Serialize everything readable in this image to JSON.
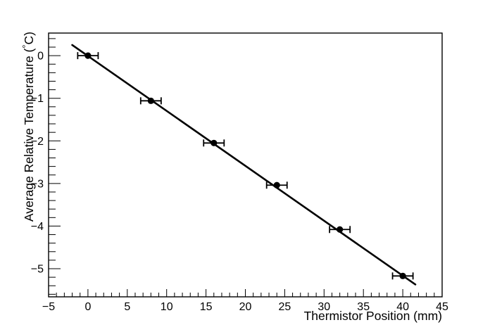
{
  "window": {
    "background": "#ffffff"
  },
  "chart_data": {
    "type": "scatter",
    "title": "",
    "xlabel": "Thermistor Position (mm)",
    "ylabel": "Average Relative Temperature (°C)",
    "xlim": [
      -5,
      45
    ],
    "ylim": [
      -5.66,
      0.53
    ],
    "grid": false,
    "legend": null,
    "x_major_ticks": [
      {
        "v": -5,
        "label": "−5"
      },
      {
        "v": 0,
        "label": "0"
      },
      {
        "v": 5,
        "label": "5"
      },
      {
        "v": 10,
        "label": "10"
      },
      {
        "v": 15,
        "label": "15"
      },
      {
        "v": 20,
        "label": "20"
      },
      {
        "v": 25,
        "label": "25"
      },
      {
        "v": 30,
        "label": "30"
      },
      {
        "v": 35,
        "label": "35"
      },
      {
        "v": 40,
        "label": "40"
      },
      {
        "v": 45,
        "label": "45"
      }
    ],
    "x_minor_tick_step": 1,
    "y_major_ticks": [
      {
        "v": 0,
        "label": "0"
      },
      {
        "v": -1,
        "label": "−1"
      },
      {
        "v": -2,
        "label": "−2"
      },
      {
        "v": -3,
        "label": "−3"
      },
      {
        "v": -4,
        "label": "−4"
      },
      {
        "v": -5,
        "label": "−5"
      }
    ],
    "y_minor_tick_step": 0.2,
    "series": [
      {
        "name": "measurements",
        "marker": "filled-circle",
        "color": "#000000",
        "points": [
          {
            "x": 0,
            "y": 0.0,
            "xerr": 1.3
          },
          {
            "x": 8,
            "y": -1.06,
            "xerr": 1.3
          },
          {
            "x": 16,
            "y": -2.05,
            "xerr": 1.3
          },
          {
            "x": 24,
            "y": -3.04,
            "xerr": 1.3
          },
          {
            "x": 32,
            "y": -4.08,
            "xerr": 1.3
          },
          {
            "x": 40,
            "y": -5.17,
            "xerr": 1.3
          }
        ]
      }
    ],
    "fit_line": {
      "name": "linear-fit",
      "color": "#000000",
      "x1": -2.0,
      "y1": 0.25,
      "x2": 41.6,
      "y2": -5.37,
      "slope": -0.129,
      "intercept": 0.0
    },
    "colors": {
      "axis": "#000000",
      "text": "#000000",
      "marker": "#000000",
      "background": "#ffffff"
    }
  }
}
